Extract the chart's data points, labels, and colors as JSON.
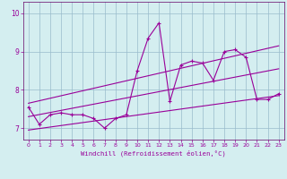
{
  "xlabel": "Windchill (Refroidissement éolien,°C)",
  "bg_color": "#d4eef0",
  "grid_color": "#99bbcc",
  "line_color": "#990099",
  "spine_color": "#660066",
  "xlim": [
    -0.5,
    23.5
  ],
  "ylim": [
    6.7,
    10.3
  ],
  "xticks": [
    0,
    1,
    2,
    3,
    4,
    5,
    6,
    7,
    8,
    9,
    10,
    11,
    12,
    13,
    14,
    15,
    16,
    17,
    18,
    19,
    20,
    21,
    22,
    23
  ],
  "yticks": [
    7,
    8,
    9,
    10
  ],
  "scatter_x": [
    0,
    1,
    2,
    3,
    4,
    5,
    6,
    7,
    8,
    9,
    10,
    11,
    12,
    13,
    14,
    15,
    16,
    17,
    18,
    19,
    20,
    21,
    22,
    23
  ],
  "scatter_y": [
    7.55,
    7.1,
    7.35,
    7.4,
    7.35,
    7.35,
    7.25,
    7.0,
    7.25,
    7.35,
    8.5,
    9.35,
    9.75,
    7.7,
    8.65,
    8.75,
    8.7,
    8.25,
    9.0,
    9.05,
    8.85,
    7.75,
    7.75,
    7.9
  ],
  "line1_x": [
    0,
    23
  ],
  "line1_y": [
    6.95,
    7.85
  ],
  "line2_x": [
    0,
    23
  ],
  "line2_y": [
    7.3,
    8.55
  ],
  "line3_x": [
    0,
    23
  ],
  "line3_y": [
    7.65,
    9.15
  ]
}
